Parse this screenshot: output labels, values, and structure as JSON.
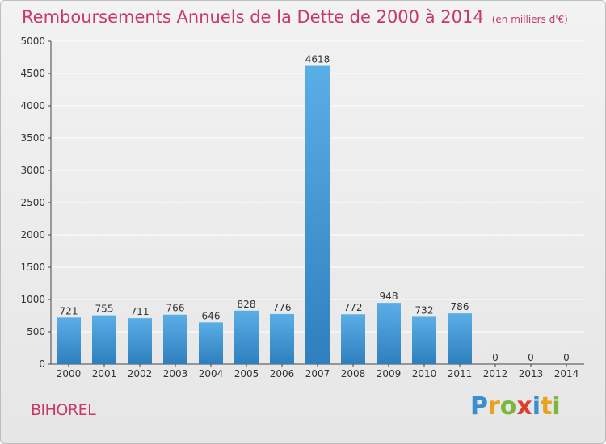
{
  "header": {
    "title": "Remboursements Annuels de la Dette de 2000 à 2014",
    "unit": "(en milliers d'€)"
  },
  "footer": {
    "city": "BIHOREL",
    "brand": "Proxiti"
  },
  "colors": {
    "bar_light": "#5aaee6",
    "bar_dark": "#2f7fbf",
    "title": "#c8386a",
    "grid": "#ffffff"
  },
  "chart_data": {
    "type": "bar",
    "title": "Remboursements Annuels de la Dette de 2000 à 2014",
    "xlabel": "",
    "ylabel": "",
    "categories": [
      "2000",
      "2001",
      "2002",
      "2003",
      "2004",
      "2005",
      "2006",
      "2007",
      "2008",
      "2009",
      "2010",
      "2011",
      "2012",
      "2013",
      "2014"
    ],
    "values": [
      721,
      755,
      711,
      766,
      646,
      828,
      776,
      4618,
      772,
      948,
      732,
      786,
      0,
      0,
      0
    ],
    "ylim": [
      0,
      5000
    ],
    "yticks": [
      0,
      500,
      1000,
      1500,
      2000,
      2500,
      3000,
      3500,
      4000,
      4500,
      5000
    ],
    "grid": true,
    "legend": "none"
  }
}
